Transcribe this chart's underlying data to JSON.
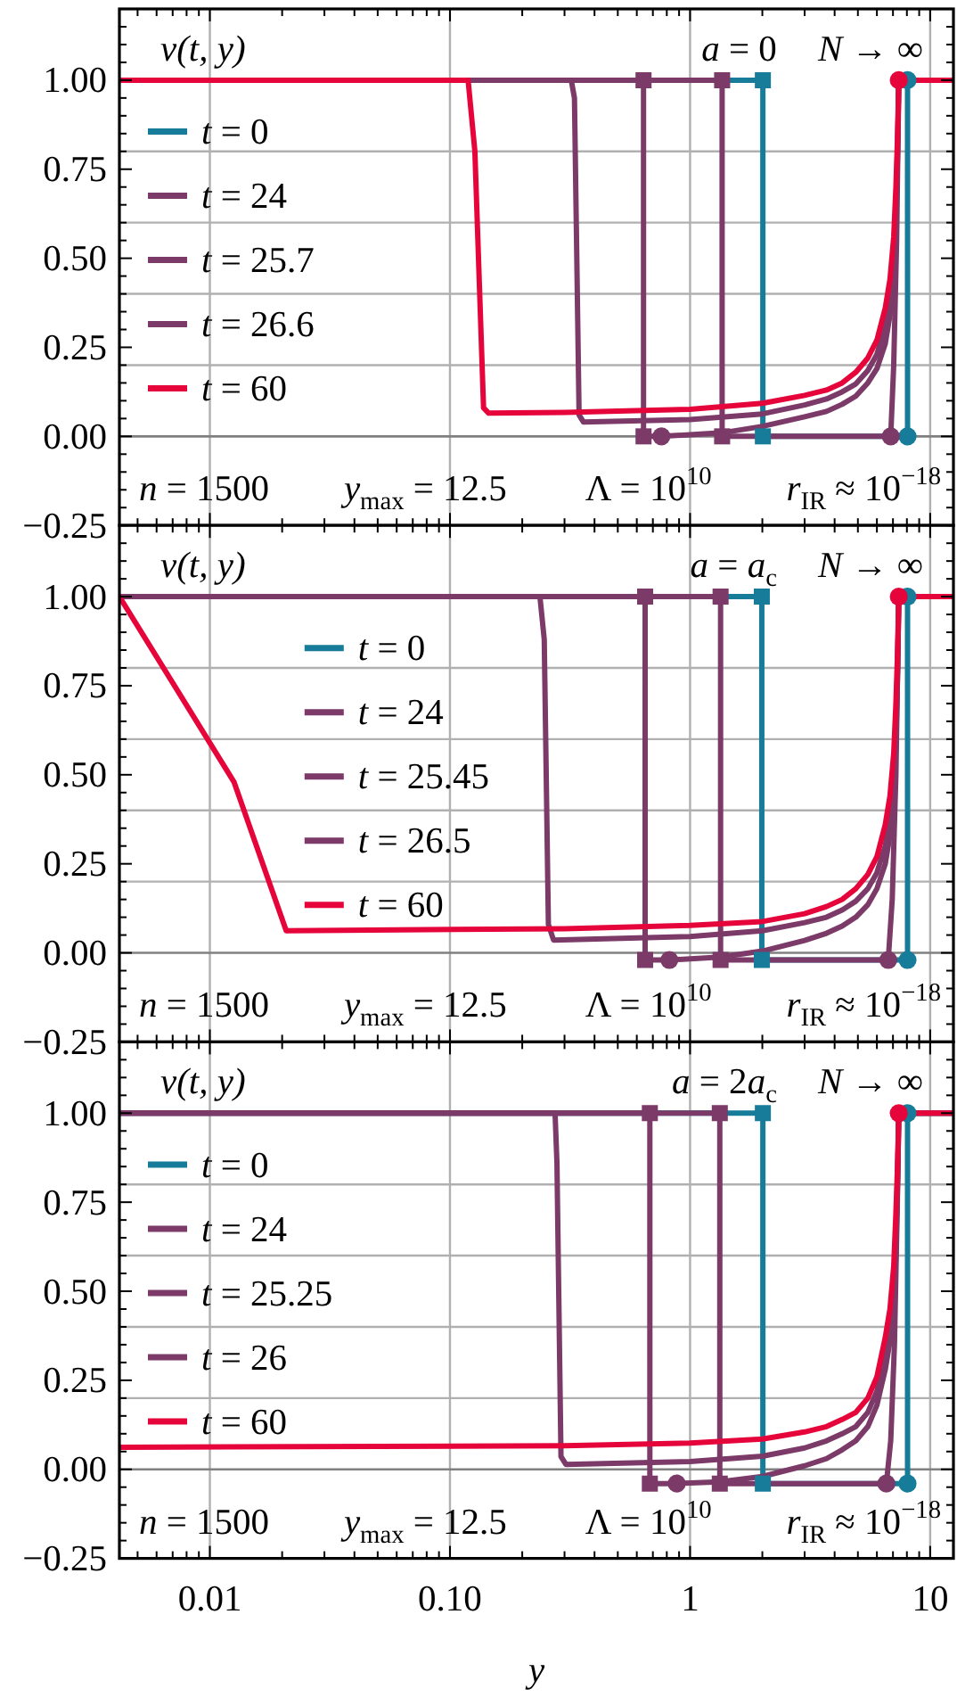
{
  "chart_data": [
    {
      "type": "line",
      "ylabel": "v(t, y)",
      "annotations": [
        "a = 0",
        "N → ∞",
        "n = 1500",
        "y$_{max}$ = 12.5",
        "Λ = 10$^{10}$",
        "r$_{IR}$ ≈ 10$^{−18}$"
      ],
      "log": "x",
      "xlim": [
        0.0042,
        12.5
      ],
      "xticks": [
        0.01,
        0.1,
        1,
        10
      ],
      "ylim": [
        -0.25,
        1.2
      ],
      "yticks": [
        {
          "value": -0.25,
          "label": "−0.25"
        },
        {
          "value": 0,
          "label": "0.00"
        },
        {
          "value": 0.2,
          "label": null
        },
        {
          "value": 0.25,
          "label": "0.25"
        },
        {
          "value": 0.4,
          "label": null
        },
        {
          "value": 0.5,
          "label": "0.50"
        },
        {
          "value": 0.6,
          "label": null
        },
        {
          "value": 0.75,
          "label": "0.75"
        },
        {
          "value": 0.8,
          "label": null
        },
        {
          "value": 1,
          "label": "1.00"
        }
      ],
      "grid": true,
      "legend": "left",
      "tick_labels": "y",
      "ref_lines": [
        {
          "axis": "y",
          "value": 0,
          "color": "#808080"
        }
      ],
      "series": [
        {
          "name": "t = 0",
          "type": "line",
          "color": "#167c9a",
          "x": [
            0.0042,
            2.01,
            2.01,
            8.05,
            8.05,
            12.5
          ],
          "values": [
            1,
            1,
            0,
            0,
            1,
            1
          ]
        },
        {
          "name": "t = 24",
          "type": "line",
          "color": "#7b3a68",
          "x": [
            0.0042,
            1.36,
            1.36,
            6.85,
            7.05,
            7.25,
            7.4,
            12.5
          ],
          "values": [
            1,
            1,
            0,
            0,
            0.2,
            0.55,
            1,
            1
          ]
        },
        {
          "name": "t = 25.7",
          "type": "line",
          "color": "#7b3a68",
          "x": [
            0.0042,
            0.64,
            0.64,
            0.76,
            1.36,
            2,
            3,
            3.7,
            4.3,
            4.9,
            5.5,
            6,
            6.5,
            6.8,
            7.05,
            7.2,
            7.32,
            7.4,
            12.5
          ],
          "values": [
            1,
            1,
            0,
            0,
            0.01,
            0.028,
            0.055,
            0.07,
            0.09,
            0.113,
            0.15,
            0.19,
            0.26,
            0.34,
            0.45,
            0.6,
            0.8,
            1,
            1
          ]
        },
        {
          "name": "t = 26.6",
          "type": "line",
          "color": "#7b3a68",
          "x": [
            0.0042,
            0.32,
            0.33,
            0.345,
            0.36,
            1,
            2,
            3,
            3.7,
            4.3,
            4.9,
            5.5,
            6,
            6.5,
            6.8,
            7.05,
            7.2,
            7.32,
            7.4,
            12.5
          ],
          "values": [
            1,
            1,
            0.95,
            0.06,
            0.04,
            0.047,
            0.063,
            0.088,
            0.105,
            0.125,
            0.147,
            0.185,
            0.23,
            0.31,
            0.39,
            0.5,
            0.64,
            0.82,
            1,
            1
          ]
        },
        {
          "name": "t = 60",
          "type": "line",
          "color": "#e6053b",
          "x": [
            0.0042,
            0.119,
            0.127,
            0.138,
            0.145,
            0.3,
            1,
            2,
            3,
            3.7,
            4.3,
            4.9,
            5.5,
            6,
            6.5,
            6.8,
            7.05,
            7.2,
            7.32,
            7.4,
            12.5
          ],
          "values": [
            1,
            1,
            0.8,
            0.08,
            0.065,
            0.067,
            0.076,
            0.093,
            0.115,
            0.13,
            0.15,
            0.18,
            0.22,
            0.27,
            0.36,
            0.44,
            0.56,
            0.7,
            0.85,
            1,
            1
          ]
        },
        {
          "type": "scatter",
          "marker": "square",
          "color": "#167c9a",
          "x": [
            2.01,
            2.01
          ],
          "values": [
            1,
            0
          ]
        },
        {
          "type": "scatter",
          "marker": "circle",
          "color": "#167c9a",
          "x": [
            8.05,
            8.05
          ],
          "values": [
            0,
            1
          ]
        },
        {
          "type": "scatter",
          "marker": "square",
          "color": "#7b3a68",
          "x": [
            0.64,
            0.64,
            1.36,
            1.36
          ],
          "values": [
            1,
            0,
            1,
            0
          ]
        },
        {
          "type": "scatter",
          "marker": "circle",
          "color": "#7b3a68",
          "x": [
            0.76,
            6.85
          ],
          "values": [
            0,
            0
          ]
        },
        {
          "type": "scatter",
          "marker": "circle",
          "color": "#e6053b",
          "x": [
            7.4
          ],
          "values": [
            1
          ]
        }
      ]
    },
    {
      "type": "line",
      "ylabel": "v(t, y)",
      "annotations": [
        "a = a$_{c}$",
        "N → ∞",
        "n = 1500",
        "y$_{max}$ = 12.5",
        "Λ = 10$^{10}$",
        "r$_{IR}$ ≈ 10$^{−18}$"
      ],
      "log": "x",
      "xlim": [
        0.0042,
        12.5
      ],
      "xticks": [
        0.01,
        0.1,
        1,
        10
      ],
      "ylim": [
        -0.25,
        1.2
      ],
      "yticks": [
        {
          "value": -0.25,
          "label": "−0.25"
        },
        {
          "value": 0,
          "label": "0.00"
        },
        {
          "value": 0.2,
          "label": null
        },
        {
          "value": 0.25,
          "label": "0.25"
        },
        {
          "value": 0.4,
          "label": null
        },
        {
          "value": 0.5,
          "label": "0.50"
        },
        {
          "value": 0.6,
          "label": null
        },
        {
          "value": 0.75,
          "label": "0.75"
        },
        {
          "value": 0.8,
          "label": null
        },
        {
          "value": 1,
          "label": "1.00"
        }
      ],
      "grid": true,
      "legend": "center",
      "tick_labels": "y",
      "ref_lines": [
        {
          "axis": "y",
          "value": 0,
          "color": "#808080"
        }
      ],
      "series": [
        {
          "name": "t = 0",
          "type": "line",
          "color": "#167c9a",
          "x": [
            0.0042,
            1.99,
            1.99,
            8.05,
            8.05,
            12.5
          ],
          "values": [
            1,
            1,
            -0.02,
            -0.02,
            1,
            1
          ]
        },
        {
          "name": "t = 24",
          "type": "line",
          "color": "#7b3a68",
          "x": [
            0.0042,
            1.34,
            1.34,
            6.69,
            6.95,
            7.2,
            7.4,
            12.5
          ],
          "values": [
            1,
            1,
            -0.02,
            -0.02,
            0.15,
            0.5,
            1,
            1
          ]
        },
        {
          "name": "t = 25.45",
          "type": "line",
          "color": "#7b3a68",
          "x": [
            0.0042,
            0.65,
            0.65,
            0.82,
            1.34,
            2,
            3,
            3.7,
            4.3,
            4.9,
            5.5,
            6,
            6.5,
            6.8,
            7.05,
            7.2,
            7.32,
            7.4,
            12.5
          ],
          "values": [
            1,
            1,
            -0.02,
            -0.02,
            -0.012,
            0.005,
            0.035,
            0.055,
            0.075,
            0.1,
            0.135,
            0.18,
            0.25,
            0.33,
            0.44,
            0.59,
            0.79,
            1,
            1
          ]
        },
        {
          "name": "t = 26.5",
          "type": "line",
          "color": "#7b3a68",
          "x": [
            0.0042,
            0.237,
            0.247,
            0.257,
            0.27,
            1,
            2,
            3,
            3.7,
            4.3,
            4.9,
            5.5,
            6,
            6.5,
            6.8,
            7.05,
            7.2,
            7.32,
            7.4,
            12.5
          ],
          "values": [
            1,
            1,
            0.88,
            0.08,
            0.036,
            0.046,
            0.062,
            0.085,
            0.1,
            0.12,
            0.145,
            0.18,
            0.225,
            0.3,
            0.38,
            0.49,
            0.63,
            0.81,
            1,
            1
          ]
        },
        {
          "name": "t = 60",
          "type": "line",
          "color": "#e6053b",
          "x": [
            0.0042,
            0.0126,
            0.0208,
            0.3,
            1,
            2,
            3,
            3.7,
            4.3,
            4.9,
            5.5,
            6,
            6.5,
            6.8,
            7.05,
            7.2,
            7.32,
            7.4,
            12.5
          ],
          "values": [
            1,
            0.48,
            0.062,
            0.068,
            0.077,
            0.088,
            0.11,
            0.13,
            0.15,
            0.18,
            0.22,
            0.27,
            0.36,
            0.44,
            0.56,
            0.7,
            0.85,
            1,
            1
          ]
        },
        {
          "type": "scatter",
          "marker": "square",
          "color": "#167c9a",
          "x": [
            1.99,
            1.99
          ],
          "values": [
            1,
            -0.02
          ]
        },
        {
          "type": "scatter",
          "marker": "circle",
          "color": "#167c9a",
          "x": [
            8.05,
            8.05
          ],
          "values": [
            -0.02,
            1
          ]
        },
        {
          "type": "scatter",
          "marker": "square",
          "color": "#7b3a68",
          "x": [
            0.65,
            0.65,
            1.34,
            1.34
          ],
          "values": [
            1,
            -0.02,
            1,
            -0.02
          ]
        },
        {
          "type": "scatter",
          "marker": "circle",
          "color": "#7b3a68",
          "x": [
            0.82,
            6.69
          ],
          "values": [
            -0.02,
            -0.02
          ]
        },
        {
          "type": "scatter",
          "marker": "circle",
          "color": "#e6053b",
          "x": [
            7.4
          ],
          "values": [
            1
          ]
        }
      ]
    },
    {
      "type": "line",
      "ylabel": "v(t, y)",
      "xlabel": "y",
      "annotations": [
        "a = 2a$_{c}$",
        "N → ∞",
        "n = 1500",
        "y$_{max}$ = 12.5",
        "Λ = 10$^{10}$",
        "r$_{IR}$ ≈ 10$^{−18}$"
      ],
      "log": "x",
      "xlim": [
        0.0042,
        12.5
      ],
      "xticks": [
        0.01,
        {
          "value": 0.1,
          "label": "0.10"
        },
        1,
        10
      ],
      "ylim": [
        -0.25,
        1.2
      ],
      "yticks": [
        {
          "value": -0.25,
          "label": "−0.25"
        },
        {
          "value": 0,
          "label": "0.00"
        },
        {
          "value": 0.2,
          "label": null
        },
        {
          "value": 0.25,
          "label": "0.25"
        },
        {
          "value": 0.4,
          "label": null
        },
        {
          "value": 0.5,
          "label": "0.50"
        },
        {
          "value": 0.6,
          "label": null
        },
        {
          "value": 0.75,
          "label": "0.75"
        },
        {
          "value": 0.8,
          "label": null
        },
        {
          "value": 1,
          "label": "1.00"
        }
      ],
      "grid": true,
      "legend": "left",
      "ref_lines": [
        {
          "axis": "y",
          "value": 0,
          "color": "#808080"
        }
      ],
      "series": [
        {
          "name": "t = 0",
          "type": "line",
          "color": "#167c9a",
          "x": [
            0.0042,
            2.01,
            2.01,
            8.05,
            8.05,
            12.5
          ],
          "values": [
            1,
            1,
            -0.04,
            -0.04,
            1,
            1
          ]
        },
        {
          "name": "t = 24",
          "type": "line",
          "color": "#7b3a68",
          "x": [
            0.0042,
            1.33,
            1.33,
            6.57,
            6.85,
            7.1,
            7.3,
            7.4,
            12.5
          ],
          "values": [
            1,
            1,
            -0.04,
            -0.04,
            0.08,
            0.35,
            0.75,
            1,
            1
          ]
        },
        {
          "name": "t = 25.25",
          "type": "line",
          "color": "#7b3a68",
          "x": [
            0.0042,
            0.68,
            0.68,
            0.88,
            1.33,
            2,
            3,
            3.7,
            4.3,
            4.9,
            5.5,
            6,
            6.5,
            6.8,
            7.05,
            7.2,
            7.32,
            7.4,
            12.5
          ],
          "values": [
            1,
            1,
            -0.04,
            -0.04,
            -0.035,
            -0.02,
            0.01,
            0.03,
            0.055,
            0.08,
            0.12,
            0.18,
            0.28,
            0.36,
            0.47,
            0.62,
            0.81,
            1,
            1
          ]
        },
        {
          "name": "t = 26",
          "type": "line",
          "color": "#7b3a68",
          "x": [
            0.0042,
            0.274,
            0.279,
            0.29,
            0.304,
            1,
            2,
            3,
            3.7,
            4.3,
            4.9,
            5.5,
            6,
            6.5,
            6.8,
            7.05,
            7.2,
            7.32,
            7.4,
            12.5
          ],
          "values": [
            1,
            1,
            0.86,
            0.036,
            0.014,
            0.022,
            0.037,
            0.06,
            0.08,
            0.1,
            0.12,
            0.16,
            0.22,
            0.33,
            0.41,
            0.52,
            0.66,
            0.83,
            1,
            1
          ]
        },
        {
          "name": "t = 60",
          "type": "line",
          "color": "#e6053b",
          "x": [
            0.0042,
            0.3,
            1,
            2,
            3,
            3.7,
            4.3,
            4.9,
            5.5,
            6,
            6.5,
            6.8,
            7.05,
            7.2,
            7.32,
            7.4,
            12.5
          ],
          "values": [
            0.062,
            0.066,
            0.074,
            0.085,
            0.105,
            0.12,
            0.14,
            0.16,
            0.2,
            0.26,
            0.37,
            0.45,
            0.57,
            0.72,
            0.86,
            1,
            1
          ]
        },
        {
          "type": "scatter",
          "marker": "square",
          "color": "#167c9a",
          "x": [
            2.01,
            2.01
          ],
          "values": [
            1,
            -0.04
          ]
        },
        {
          "type": "scatter",
          "marker": "circle",
          "color": "#167c9a",
          "x": [
            8.05,
            8.05
          ],
          "values": [
            -0.04,
            1
          ]
        },
        {
          "type": "scatter",
          "marker": "square",
          "color": "#7b3a68",
          "x": [
            0.68,
            0.68,
            1.33,
            1.33
          ],
          "values": [
            1,
            -0.04,
            1,
            -0.04
          ]
        },
        {
          "type": "scatter",
          "marker": "circle",
          "color": "#7b3a68",
          "x": [
            0.88,
            6.57
          ],
          "values": [
            -0.04,
            -0.04
          ]
        },
        {
          "type": "scatter",
          "marker": "circle",
          "color": "#e6053b",
          "x": [
            7.4
          ],
          "values": [
            1
          ]
        }
      ]
    }
  ]
}
